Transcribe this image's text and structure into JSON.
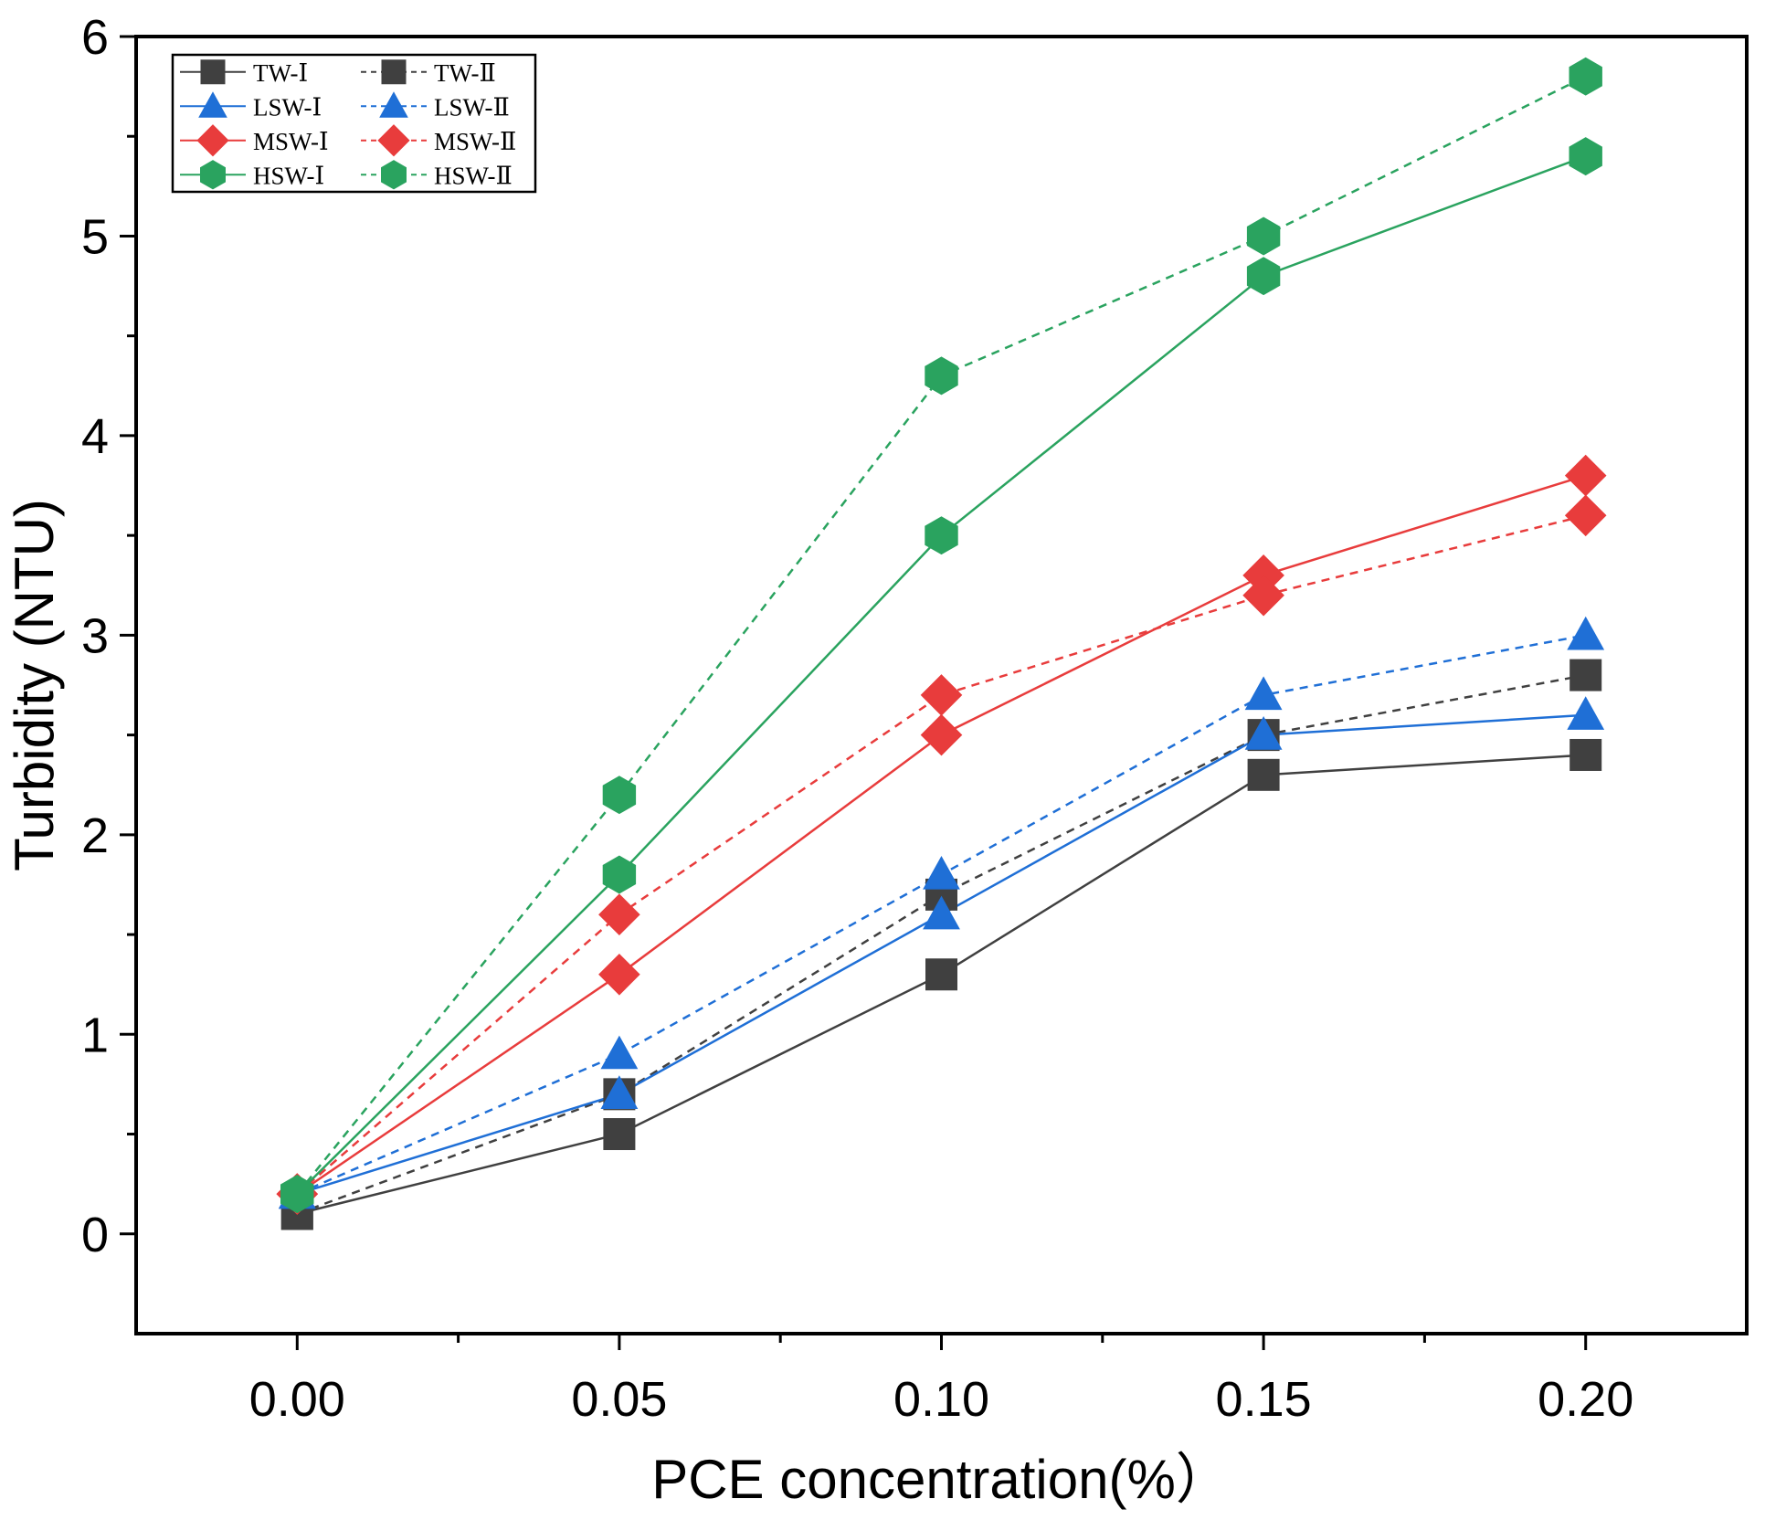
{
  "chart_data": {
    "type": "line",
    "title": "",
    "xlabel": "PCE concentration(%）",
    "ylabel": "Turbidity (NTU)",
    "x": [
      0.0,
      0.05,
      0.1,
      0.15,
      0.2
    ],
    "xticks": [
      {
        "value": 0.0,
        "label": "0.00"
      },
      {
        "value": 0.05,
        "label": "0.05"
      },
      {
        "value": 0.1,
        "label": "0.10"
      },
      {
        "value": 0.15,
        "label": "0.15"
      },
      {
        "value": 0.2,
        "label": "0.20"
      }
    ],
    "yticks": [
      {
        "value": 0,
        "label": "0"
      },
      {
        "value": 1,
        "label": "1"
      },
      {
        "value": 2,
        "label": "2"
      },
      {
        "value": 3,
        "label": "3"
      },
      {
        "value": 4,
        "label": "4"
      },
      {
        "value": 5,
        "label": "5"
      },
      {
        "value": 6,
        "label": "6"
      }
    ],
    "xlim": [
      -0.025,
      0.225
    ],
    "ylim": [
      -0.5,
      6
    ],
    "x_minor_step": 0.025,
    "y_minor_step": 0.5,
    "grid": false,
    "legend_position": "top-left",
    "series": [
      {
        "name": "TW-Ⅰ",
        "color": "#404040",
        "marker": "square",
        "dashed": false,
        "values": [
          0.1,
          0.5,
          1.3,
          2.3,
          2.4
        ]
      },
      {
        "name": "TW-Ⅱ",
        "color": "#404040",
        "marker": "square",
        "dashed": true,
        "values": [
          0.1,
          0.7,
          1.7,
          2.5,
          2.8
        ]
      },
      {
        "name": "LSW-Ⅰ",
        "color": "#1f6fd6",
        "marker": "triangle",
        "dashed": false,
        "values": [
          0.2,
          0.7,
          1.6,
          2.5,
          2.6
        ]
      },
      {
        "name": "LSW-Ⅱ",
        "color": "#1f6fd6",
        "marker": "triangle",
        "dashed": true,
        "values": [
          0.2,
          0.9,
          1.8,
          2.7,
          3.0
        ]
      },
      {
        "name": "MSW-Ⅰ",
        "color": "#e83c3c",
        "marker": "diamond",
        "dashed": false,
        "values": [
          0.2,
          1.3,
          2.5,
          3.3,
          3.8
        ]
      },
      {
        "name": "MSW-Ⅱ",
        "color": "#e83c3c",
        "marker": "diamond",
        "dashed": true,
        "values": [
          0.2,
          1.6,
          2.7,
          3.2,
          3.6
        ]
      },
      {
        "name": "HSW-Ⅰ",
        "color": "#2aa35f",
        "marker": "hexagon",
        "dashed": false,
        "values": [
          0.2,
          1.8,
          3.5,
          4.8,
          5.4
        ]
      },
      {
        "name": "HSW-Ⅱ",
        "color": "#2aa35f",
        "marker": "hexagon",
        "dashed": true,
        "values": [
          0.2,
          2.2,
          4.3,
          5.0,
          5.8
        ]
      }
    ]
  }
}
